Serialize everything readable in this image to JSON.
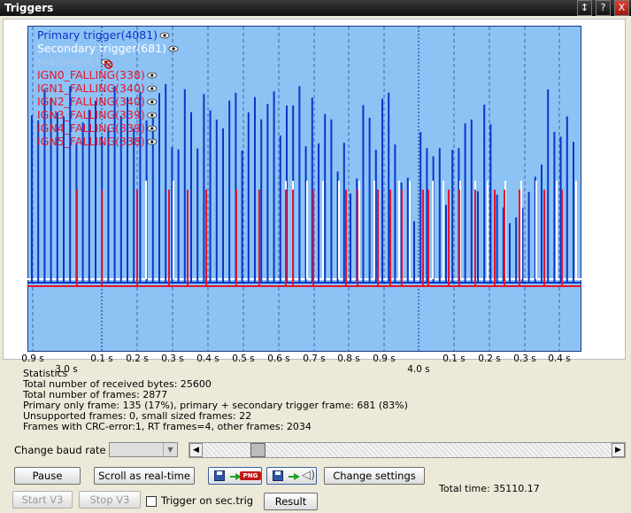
{
  "window": {
    "title": "Triggers",
    "buttons": [
      "↕",
      "?",
      "X"
    ]
  },
  "legend": [
    {
      "label": "Primary trigger(4081)",
      "color": "#0a36c8"
    },
    {
      "label": "Secondary trigger(681)",
      "color": "#ffffff"
    },
    {
      "label": "realtime(0)",
      "color": "#aac6e6"
    },
    {
      "label": "IGN0_FALLING(338)",
      "color": "#e8142a"
    },
    {
      "label": "IGN1_FALLING(340)",
      "color": "#e8142a"
    },
    {
      "label": "IGN2_FALLING(340)",
      "color": "#e8142a"
    },
    {
      "label": "IGN3_FALLING(339)",
      "color": "#e8142a"
    },
    {
      "label": "IGN4_FALLING(339)",
      "color": "#e8142a"
    },
    {
      "label": "IGN5_FALLING(338)",
      "color": "#e8142a"
    }
  ],
  "time_axis": {
    "ticks": [
      "0.9 s",
      "0.1 s",
      "0.2 s",
      "0.3 s",
      "0.4 s",
      "0.5 s",
      "0.6 s",
      "0.7 s",
      "0.8 s",
      "0.9 s",
      "0.1 s",
      "0.2 s",
      "0.3 s",
      "0.4 s"
    ],
    "major_ticks": [
      "3.0 s",
      "4.0 s"
    ]
  },
  "stats": {
    "heading": "Statistics",
    "lines": [
      "Total number of received bytes: 25600",
      "Total number of frames: 2877",
      "Primary only frame: 135 (17%), primary + secondary trigger frame: 681 (83%)",
      "Unsupported frames: 0, small sized frames: 22",
      "Frames with CRC-error:1, RT frames=4, other frames: 2034"
    ]
  },
  "controls": {
    "baud_label": "Change baud rate",
    "baud_value": "",
    "scroll_position": 0.12,
    "pause": "Pause",
    "scroll_realtime": "Scroll as real-time",
    "png_tag": "PNG",
    "change_settings": "Change settings",
    "start_v3": "Start V3",
    "stop_v3": "Stop V3",
    "trigger_sec_label": "Trigger on sec.trig",
    "trigger_sec_checked": false,
    "result": "Result",
    "total_time": "Total time: 35110.17"
  },
  "colors": {
    "plot_bg": "#8dc2f5",
    "primary": "#0a36c8",
    "secondary": "#ffffff",
    "ign": "#e8142a"
  }
}
